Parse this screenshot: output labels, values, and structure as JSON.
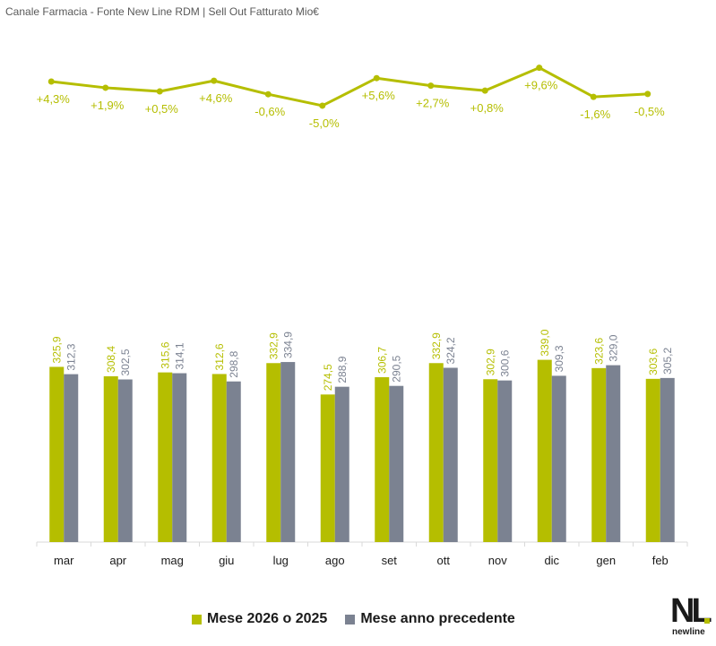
{
  "header": {
    "title": "Canale Farmacia - Fonte New Line RDM | Sell Out Fatturato Mio€"
  },
  "colors": {
    "current": "#b5be00",
    "previous": "#7b8291",
    "axis": "#d9d9d9"
  },
  "legend": {
    "current_label": "Mese 2026 o 2025",
    "previous_label": "Mese anno precedente"
  },
  "logo": {
    "letters": "NL",
    "word": "newline"
  },
  "chart_data": {
    "type": "bar",
    "categories": [
      "mar",
      "apr",
      "mag",
      "giu",
      "lug",
      "ago",
      "set",
      "ott",
      "nov",
      "dic",
      "gen",
      "feb"
    ],
    "series": [
      {
        "name": "Mese 2026 o 2025",
        "values": [
          325.9,
          308.4,
          315.6,
          312.6,
          332.9,
          274.5,
          306.7,
          332.9,
          302.9,
          339.0,
          323.6,
          303.6
        ],
        "labels": [
          "325,9",
          "308,4",
          "315,6",
          "312,6",
          "332,9",
          "274,5",
          "306,7",
          "332,9",
          "302,9",
          "339,0",
          "323,6",
          "303,6"
        ]
      },
      {
        "name": "Mese anno precedente",
        "values": [
          312.3,
          302.5,
          314.1,
          298.8,
          334.9,
          288.9,
          290.5,
          324.2,
          300.6,
          309.3,
          329.0,
          305.2
        ],
        "labels": [
          "312,3",
          "302,5",
          "314,1",
          "298,8",
          "334,9",
          "288,9",
          "290,5",
          "324,2",
          "300,6",
          "309,3",
          "329,0",
          "305,2"
        ]
      }
    ],
    "growth": {
      "type": "line",
      "values": [
        4.3,
        1.9,
        0.5,
        4.6,
        -0.6,
        -5.0,
        5.6,
        2.7,
        0.8,
        9.6,
        -1.6,
        -0.5
      ],
      "labels": [
        "+4,3%",
        "+1,9%",
        "+0,5%",
        "+4,6%",
        "-0,6%",
        "-5,0%",
        "+5,6%",
        "+2,7%",
        "+0,8%",
        "+9,6%",
        "-1,6%",
        "-0,5%"
      ]
    },
    "legend_position": "bottom",
    "grid": false
  }
}
